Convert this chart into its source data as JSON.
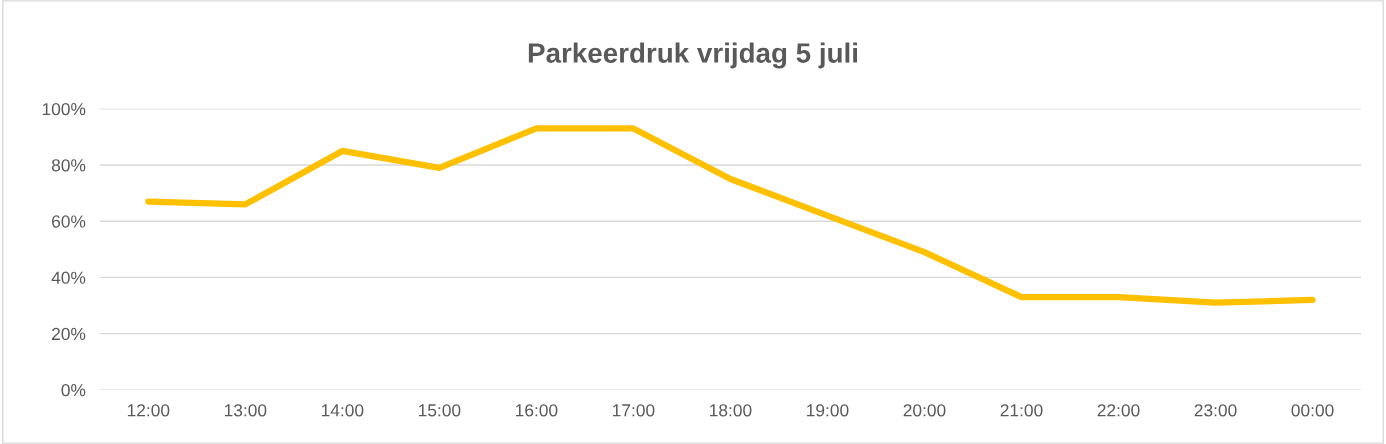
{
  "chart_data": {
    "type": "line",
    "title": "Parkeerdruk vrijdag 5 juli",
    "categories": [
      "12:00",
      "13:00",
      "14:00",
      "15:00",
      "16:00",
      "17:00",
      "18:00",
      "19:00",
      "20:00",
      "21:00",
      "22:00",
      "23:00",
      "00:00"
    ],
    "series": [
      {
        "color": "#ffc000",
        "values": [
          67,
          66,
          85,
          79,
          93,
          93,
          75,
          62,
          49,
          33,
          33,
          31,
          32
        ]
      }
    ],
    "ylim": [
      0,
      100
    ],
    "yticks": [
      {
        "value": 0,
        "label": "0%"
      },
      {
        "value": 20,
        "label": "20%"
      },
      {
        "value": 40,
        "label": "40%"
      },
      {
        "value": 60,
        "label": "60%"
      },
      {
        "value": 80,
        "label": "80%"
      },
      {
        "value": 100,
        "label": "100%"
      }
    ],
    "grid": "y",
    "marker": "none",
    "line_style": "solid"
  }
}
